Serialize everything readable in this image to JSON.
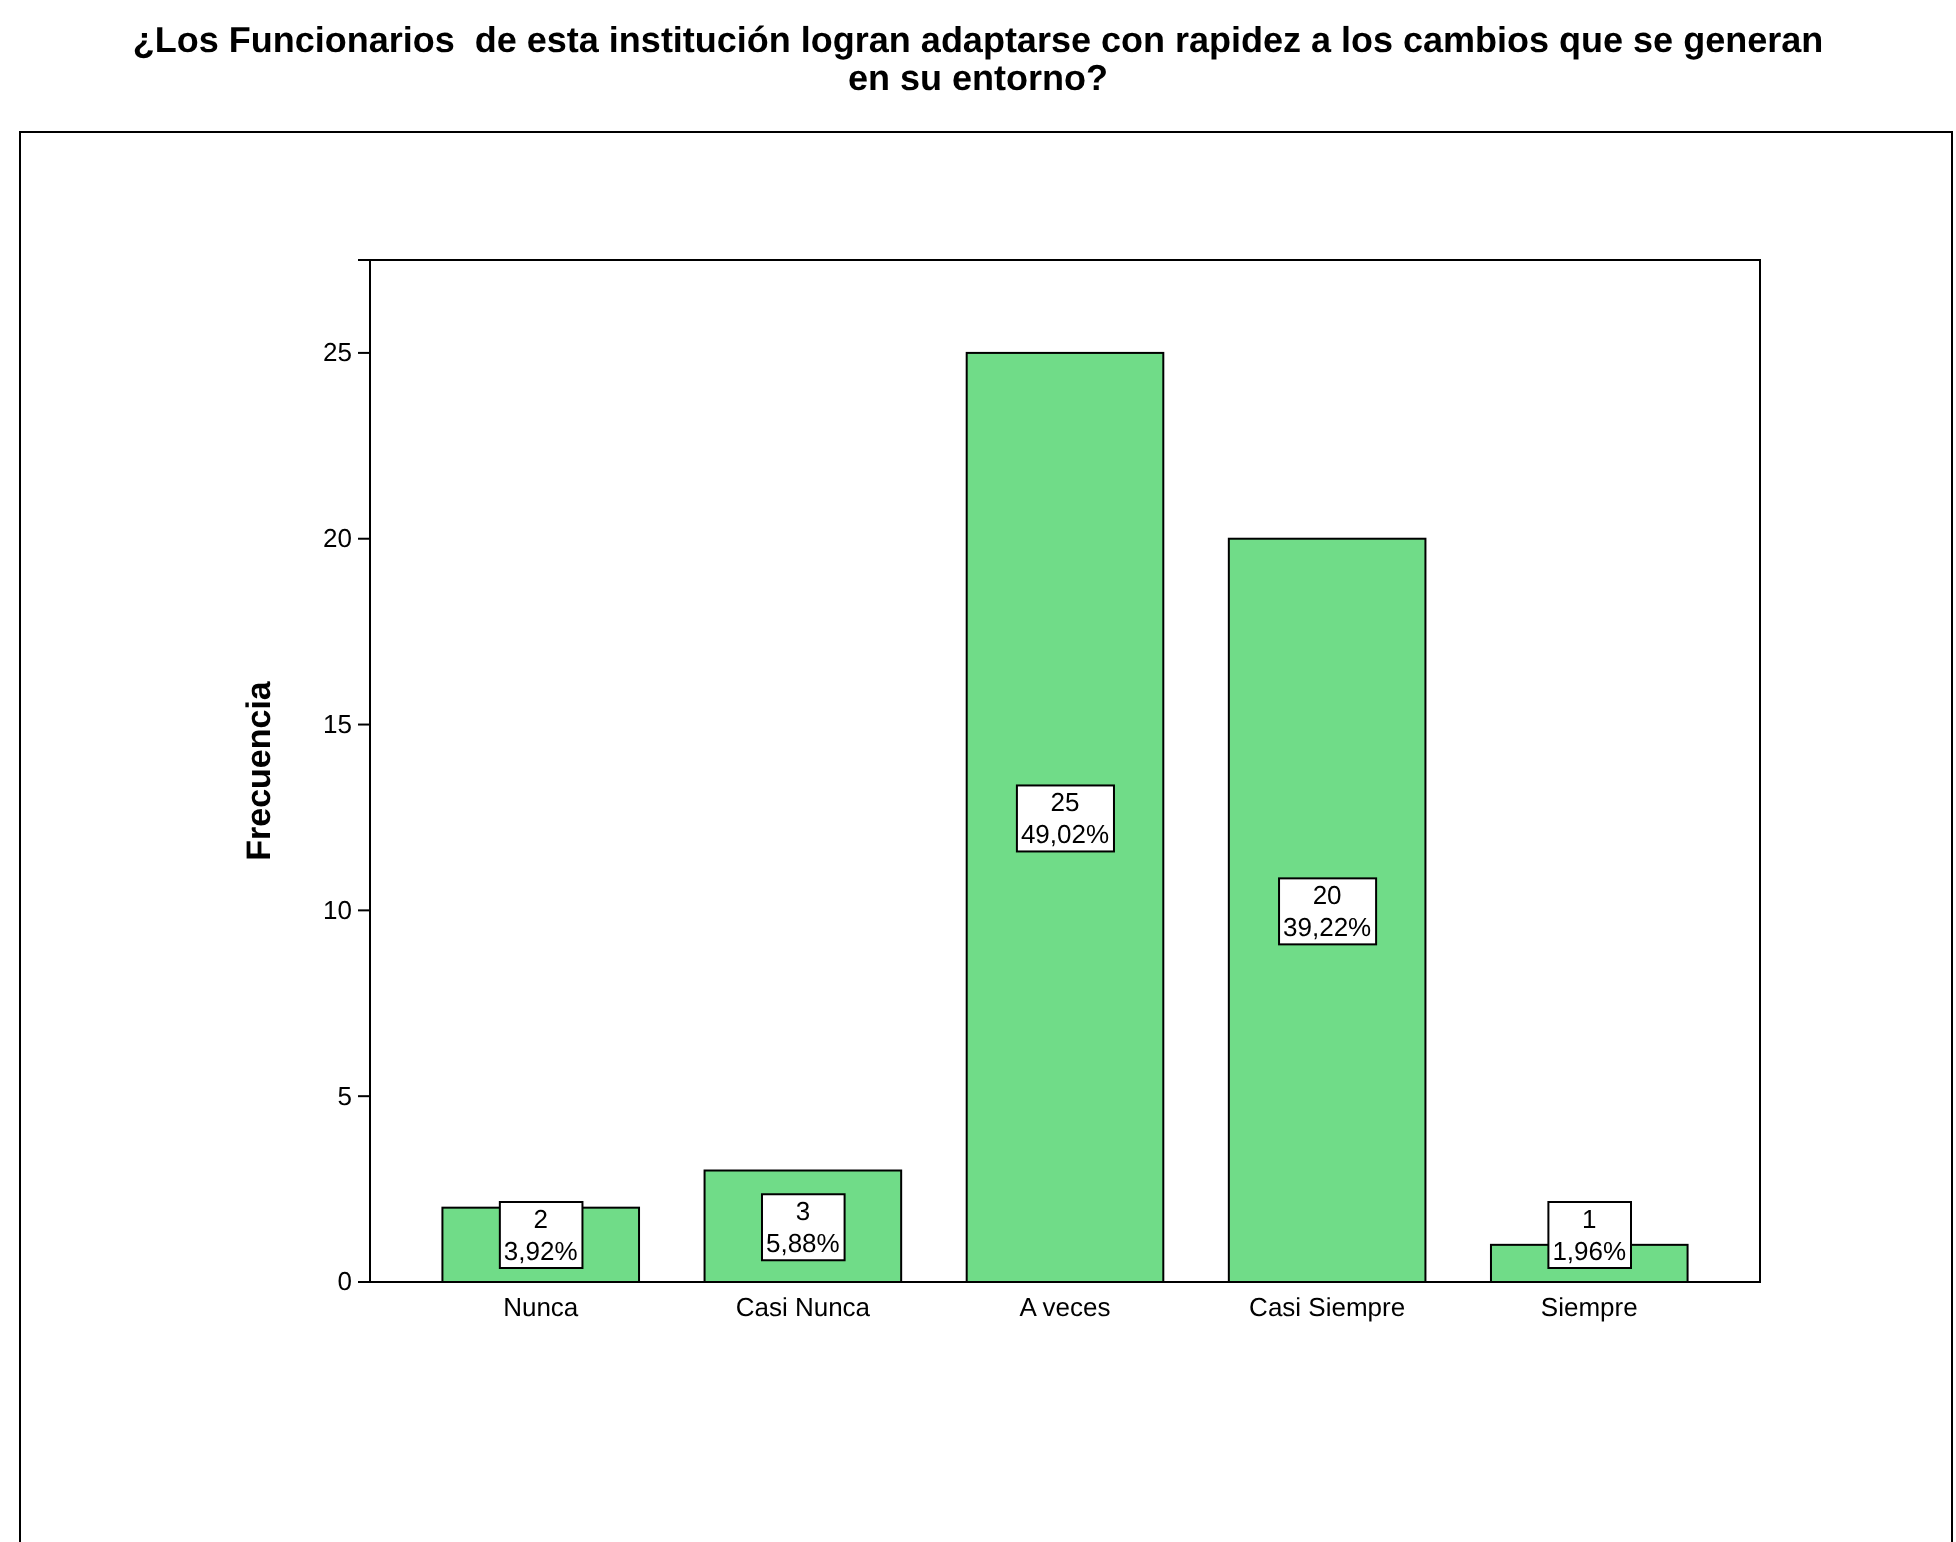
{
  "chart_data": {
    "type": "bar",
    "title": "¿Los Funcionarios  de esta institución logran adaptarse con rapidez a los cambios que se generan en su entorno?",
    "ylabel": "Frecuencia",
    "categories": [
      "Nunca",
      "Casi Nunca",
      "A veces",
      "Casi Siempre",
      "Siempre"
    ],
    "values": [
      2,
      3,
      25,
      20,
      1
    ],
    "color": "#70dc88",
    "value_labels": [
      "2\n3,92%",
      "3\n5,88%",
      "25\n49,02%",
      "20\n39,22%",
      "1\n1,96%"
    ],
    "ylim": [
      0,
      27.5
    ],
    "yticks": [
      0,
      5,
      10,
      15,
      20,
      25
    ]
  }
}
